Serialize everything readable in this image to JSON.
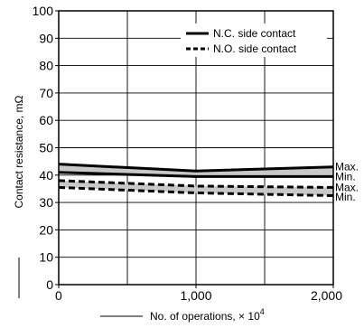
{
  "chart_data": {
    "type": "line",
    "title": "",
    "xlabel": "No. of operations, × 10",
    "xlabel_exponent": "4",
    "ylabel": "Contact resistance, mΩ",
    "x": [
      0,
      1000,
      2000
    ],
    "xticks": [
      0,
      1000,
      2000
    ],
    "xtick_labels": [
      "0",
      "1,000",
      "2,000"
    ],
    "xlim": [
      0,
      2000
    ],
    "ylim": [
      0,
      100
    ],
    "yticks": [
      0,
      10,
      20,
      30,
      40,
      50,
      60,
      70,
      80,
      90,
      100
    ],
    "ytick_labels": [
      "0",
      "10",
      "20",
      "30",
      "40",
      "50",
      "60",
      "70",
      "80",
      "90",
      "100"
    ],
    "grid": true,
    "legend_position": "top-right",
    "series": [
      {
        "name": "N.C. side contact",
        "style": "solid",
        "band_fill": "#c8c8c8",
        "max": [
          44,
          41.5,
          43
        ],
        "min": [
          41,
          39.5,
          39.5
        ]
      },
      {
        "name": "N.O. side contact",
        "style": "dashed",
        "band_fill": "#c8c8c8",
        "max": [
          38,
          36,
          35.5
        ],
        "min": [
          35.5,
          33.5,
          32.5
        ]
      }
    ],
    "end_labels": [
      "Max.",
      "Min.",
      "Max.",
      "Min."
    ]
  }
}
